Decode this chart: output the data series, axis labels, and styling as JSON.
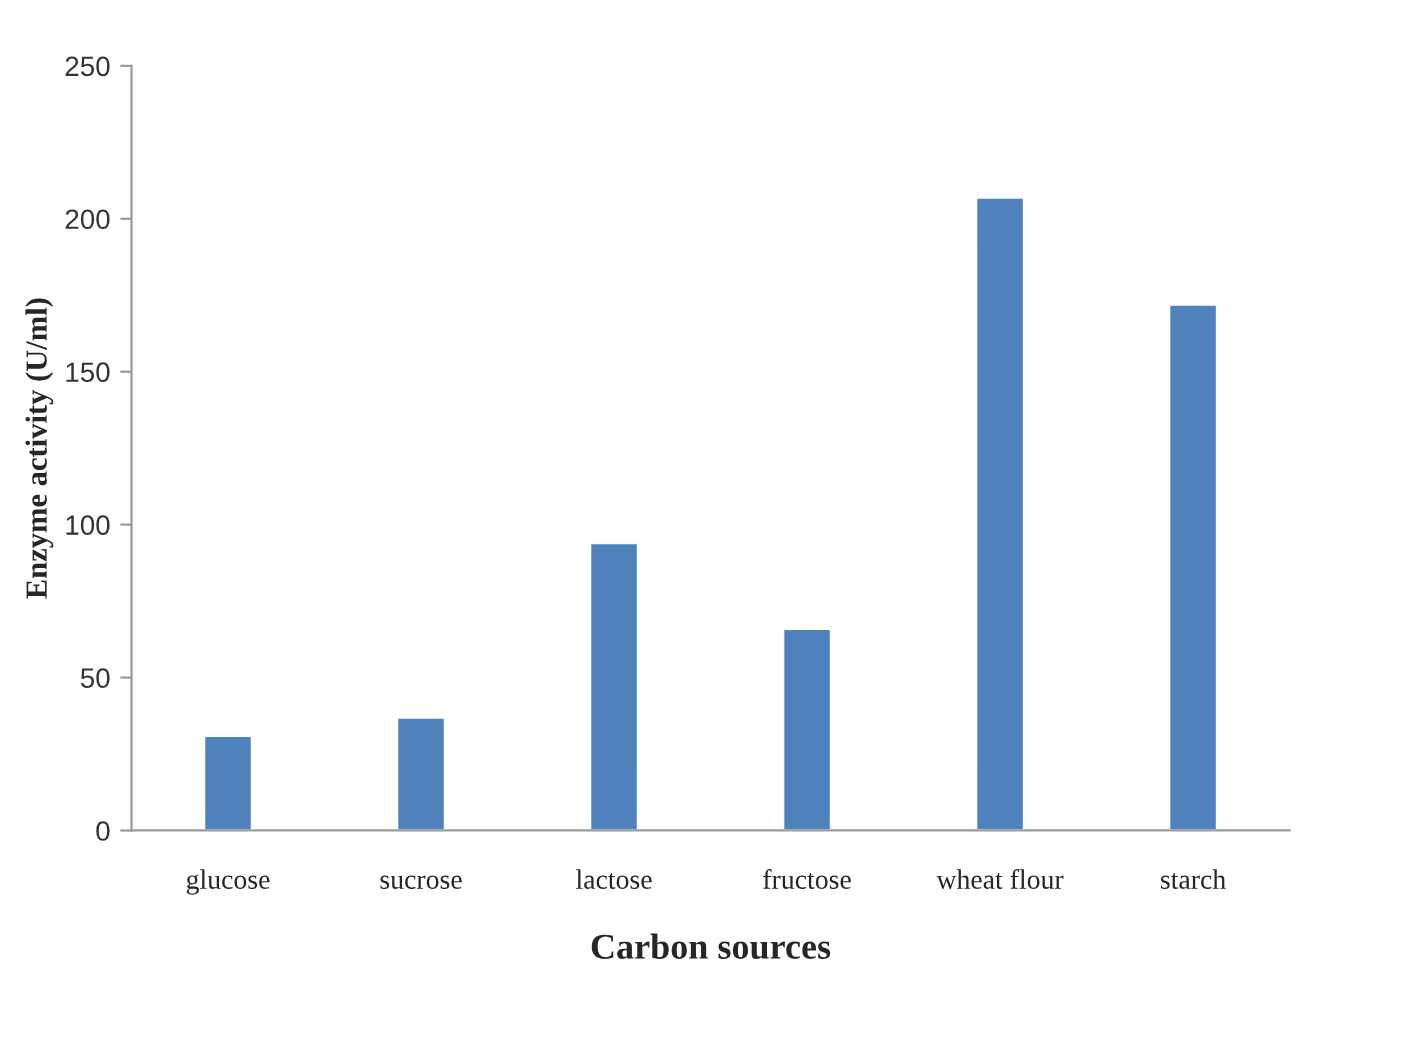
{
  "chart_data": {
    "type": "bar",
    "xlabel": "Carbon sources",
    "ylabel": "Enzyme activity (U/ml)",
    "categories": [
      "glucose",
      "sucrose",
      "lactose",
      "fructose",
      "wheat flour",
      "starch"
    ],
    "values": [
      31,
      37,
      94,
      66,
      207,
      172
    ],
    "color": "#4f81bd",
    "ylim": [
      0,
      250
    ],
    "yticks": [
      0,
      50,
      100,
      150,
      200,
      250
    ],
    "grid": false,
    "legend": false
  }
}
